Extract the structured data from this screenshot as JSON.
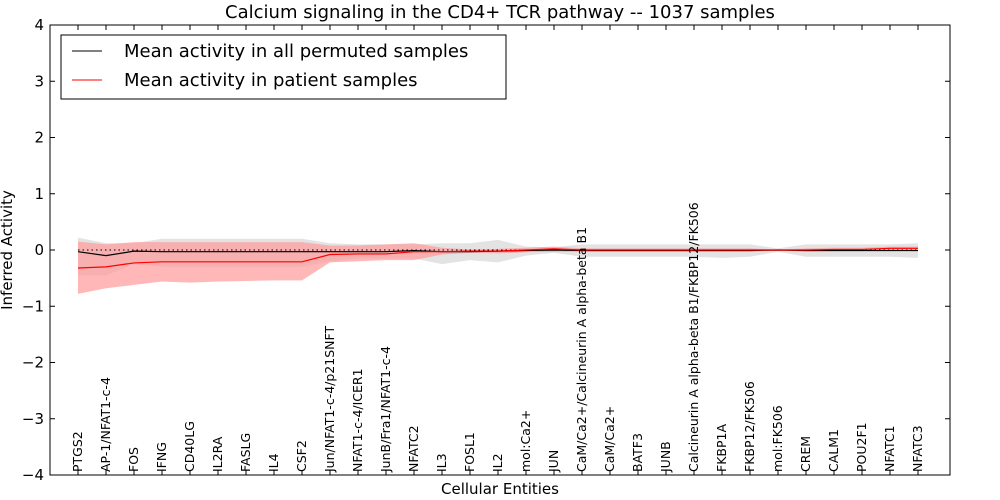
{
  "chart_data": {
    "type": "line",
    "title": "Calcium signaling in the CD4+ TCR pathway -- 1037 samples",
    "xlabel": "Cellular Entities",
    "ylabel": "Inferred Activity",
    "ylim": [
      -4,
      4
    ],
    "yticks": [
      "−4",
      "−3",
      "−2",
      "−1",
      "0",
      "1",
      "2",
      "3",
      "4"
    ],
    "legend_position": "top-left",
    "categories": [
      "PTGS2",
      "AP-1/NFAT1-c-4",
      "FOS",
      "IFNG",
      "CD40LG",
      "IL2RA",
      "FASLG",
      "IL4",
      "CSF2",
      "Jun/NFAT1-c-4/p21SNFT",
      "NFAT1-c-4/ICER1",
      "JunB/Fra1/NFAT1-c-4",
      "NFATC2",
      "IL3",
      "FOSL1",
      "IL2",
      "mol:Ca2+",
      "JUN",
      "CaM/Ca2+/Calcineurin A alpha-beta B1",
      "CaM/Ca2+",
      "BATF3",
      "JUNB",
      "Calcineurin A alpha-beta B1/FKBP12/FK506",
      "FKBP1A",
      "FKBP12/FK506",
      "mol:FK506",
      "CREM",
      "CALM1",
      "POU2F1",
      "NFATC1",
      "NFATC3"
    ],
    "series": [
      {
        "name": "Mean activity in all permuted samples",
        "color": "#000000",
        "values": [
          -0.03,
          -0.1,
          -0.02,
          -0.03,
          -0.03,
          -0.03,
          -0.03,
          -0.03,
          -0.03,
          -0.03,
          -0.03,
          -0.03,
          -0.01,
          -0.03,
          -0.03,
          -0.02,
          -0.01,
          0.0,
          -0.01,
          -0.01,
          -0.01,
          -0.01,
          -0.01,
          -0.01,
          -0.01,
          0.0,
          -0.01,
          -0.01,
          -0.01,
          -0.01,
          -0.01
        ],
        "band_low": [
          -0.45,
          -0.45,
          -0.25,
          -0.3,
          -0.3,
          -0.3,
          -0.3,
          -0.3,
          -0.3,
          -0.2,
          -0.15,
          -0.15,
          -0.15,
          -0.25,
          -0.18,
          -0.22,
          -0.1,
          -0.05,
          -0.12,
          -0.12,
          -0.12,
          -0.12,
          -0.12,
          -0.14,
          -0.12,
          -0.03,
          -0.12,
          -0.12,
          -0.12,
          -0.12,
          -0.14
        ],
        "band_high": [
          0.22,
          0.12,
          0.12,
          0.2,
          0.2,
          0.2,
          0.2,
          0.2,
          0.2,
          0.12,
          0.1,
          0.1,
          0.1,
          0.12,
          0.12,
          0.18,
          0.06,
          0.05,
          0.1,
          0.1,
          0.1,
          0.1,
          0.1,
          0.1,
          0.1,
          0.03,
          0.1,
          0.1,
          0.1,
          0.1,
          0.12
        ],
        "band_color": "#c8c8c8"
      },
      {
        "name": "Mean activity in patient samples",
        "color": "#ff0000",
        "values": [
          -0.32,
          -0.3,
          -0.23,
          -0.21,
          -0.21,
          -0.21,
          -0.21,
          -0.21,
          -0.21,
          -0.08,
          -0.07,
          -0.07,
          -0.03,
          -0.03,
          -0.02,
          -0.02,
          0.0,
          0.02,
          0.0,
          0.0,
          0.0,
          0.0,
          0.0,
          0.0,
          0.0,
          0.0,
          0.0,
          0.01,
          0.01,
          0.03,
          0.03
        ],
        "band_low": [
          -0.78,
          -0.68,
          -0.62,
          -0.56,
          -0.58,
          -0.56,
          -0.55,
          -0.54,
          -0.54,
          -0.22,
          -0.2,
          -0.18,
          -0.18,
          -0.08,
          -0.05,
          -0.06,
          -0.04,
          -0.03,
          -0.03,
          -0.03,
          -0.03,
          -0.03,
          -0.03,
          -0.03,
          -0.03,
          -0.01,
          -0.03,
          -0.02,
          -0.02,
          0.0,
          0.0
        ],
        "band_high": [
          0.15,
          0.1,
          0.14,
          0.14,
          0.14,
          0.14,
          0.14,
          0.14,
          0.14,
          0.08,
          0.08,
          0.1,
          0.12,
          0.04,
          0.01,
          0.02,
          0.04,
          0.06,
          0.03,
          0.03,
          0.03,
          0.03,
          0.03,
          0.03,
          0.03,
          0.01,
          0.03,
          0.04,
          0.04,
          0.06,
          0.06
        ],
        "band_color": "#ff9999"
      }
    ],
    "reference_line": {
      "y": 0,
      "style": "dotted"
    }
  }
}
